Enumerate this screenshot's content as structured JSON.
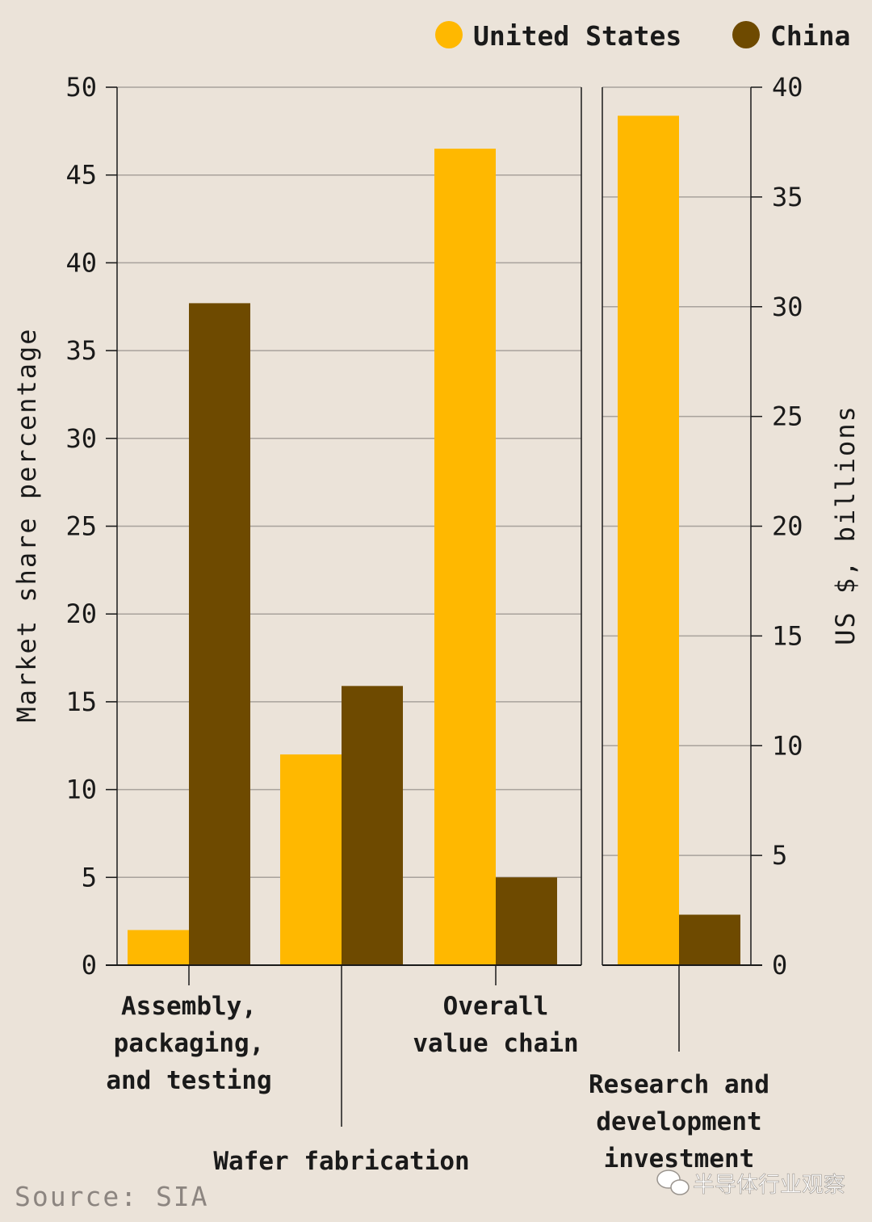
{
  "chart_data": [
    {
      "type": "bar",
      "ylabel": "Market share percentage",
      "ylim": [
        0,
        50
      ],
      "yticks": [
        0,
        5,
        10,
        15,
        20,
        25,
        30,
        35,
        40,
        45,
        50
      ],
      "categories": [
        "Assembly, packaging, and testing",
        "Wafer fabrication",
        "Overall value chain"
      ],
      "category_lines": [
        [
          "Assembly,",
          "packaging,",
          "and testing"
        ],
        [
          "Wafer fabrication"
        ],
        [
          "Overall",
          "value chain"
        ]
      ],
      "series": [
        {
          "name": "United States",
          "values": [
            2,
            12,
            46.5
          ]
        },
        {
          "name": "China",
          "values": [
            37.7,
            15.9,
            5
          ]
        }
      ],
      "grid": true
    },
    {
      "type": "bar",
      "ylabel": "US $, billions",
      "ylim": [
        0,
        40
      ],
      "yticks": [
        0,
        5,
        10,
        15,
        20,
        25,
        30,
        35,
        40
      ],
      "categories": [
        "Research and development investment"
      ],
      "category_lines": [
        [
          "Research and",
          "development",
          "investment"
        ]
      ],
      "series": [
        {
          "name": "United States",
          "values": [
            38.7
          ]
        },
        {
          "name": "China",
          "values": [
            2.3
          ]
        }
      ],
      "grid": true
    }
  ],
  "legend": {
    "position": "top-right",
    "items": [
      {
        "label": "United States",
        "color": "#ffb800"
      },
      {
        "label": "China",
        "color": "#6e4a00"
      }
    ]
  },
  "colors": {
    "us": "#ffb800",
    "china": "#6e4a00",
    "grid": "#a8a29c",
    "axis": "#1a1a1a",
    "background": "#ebe3d9"
  },
  "source": "Source: SIA",
  "watermark": "半导体行业观察"
}
